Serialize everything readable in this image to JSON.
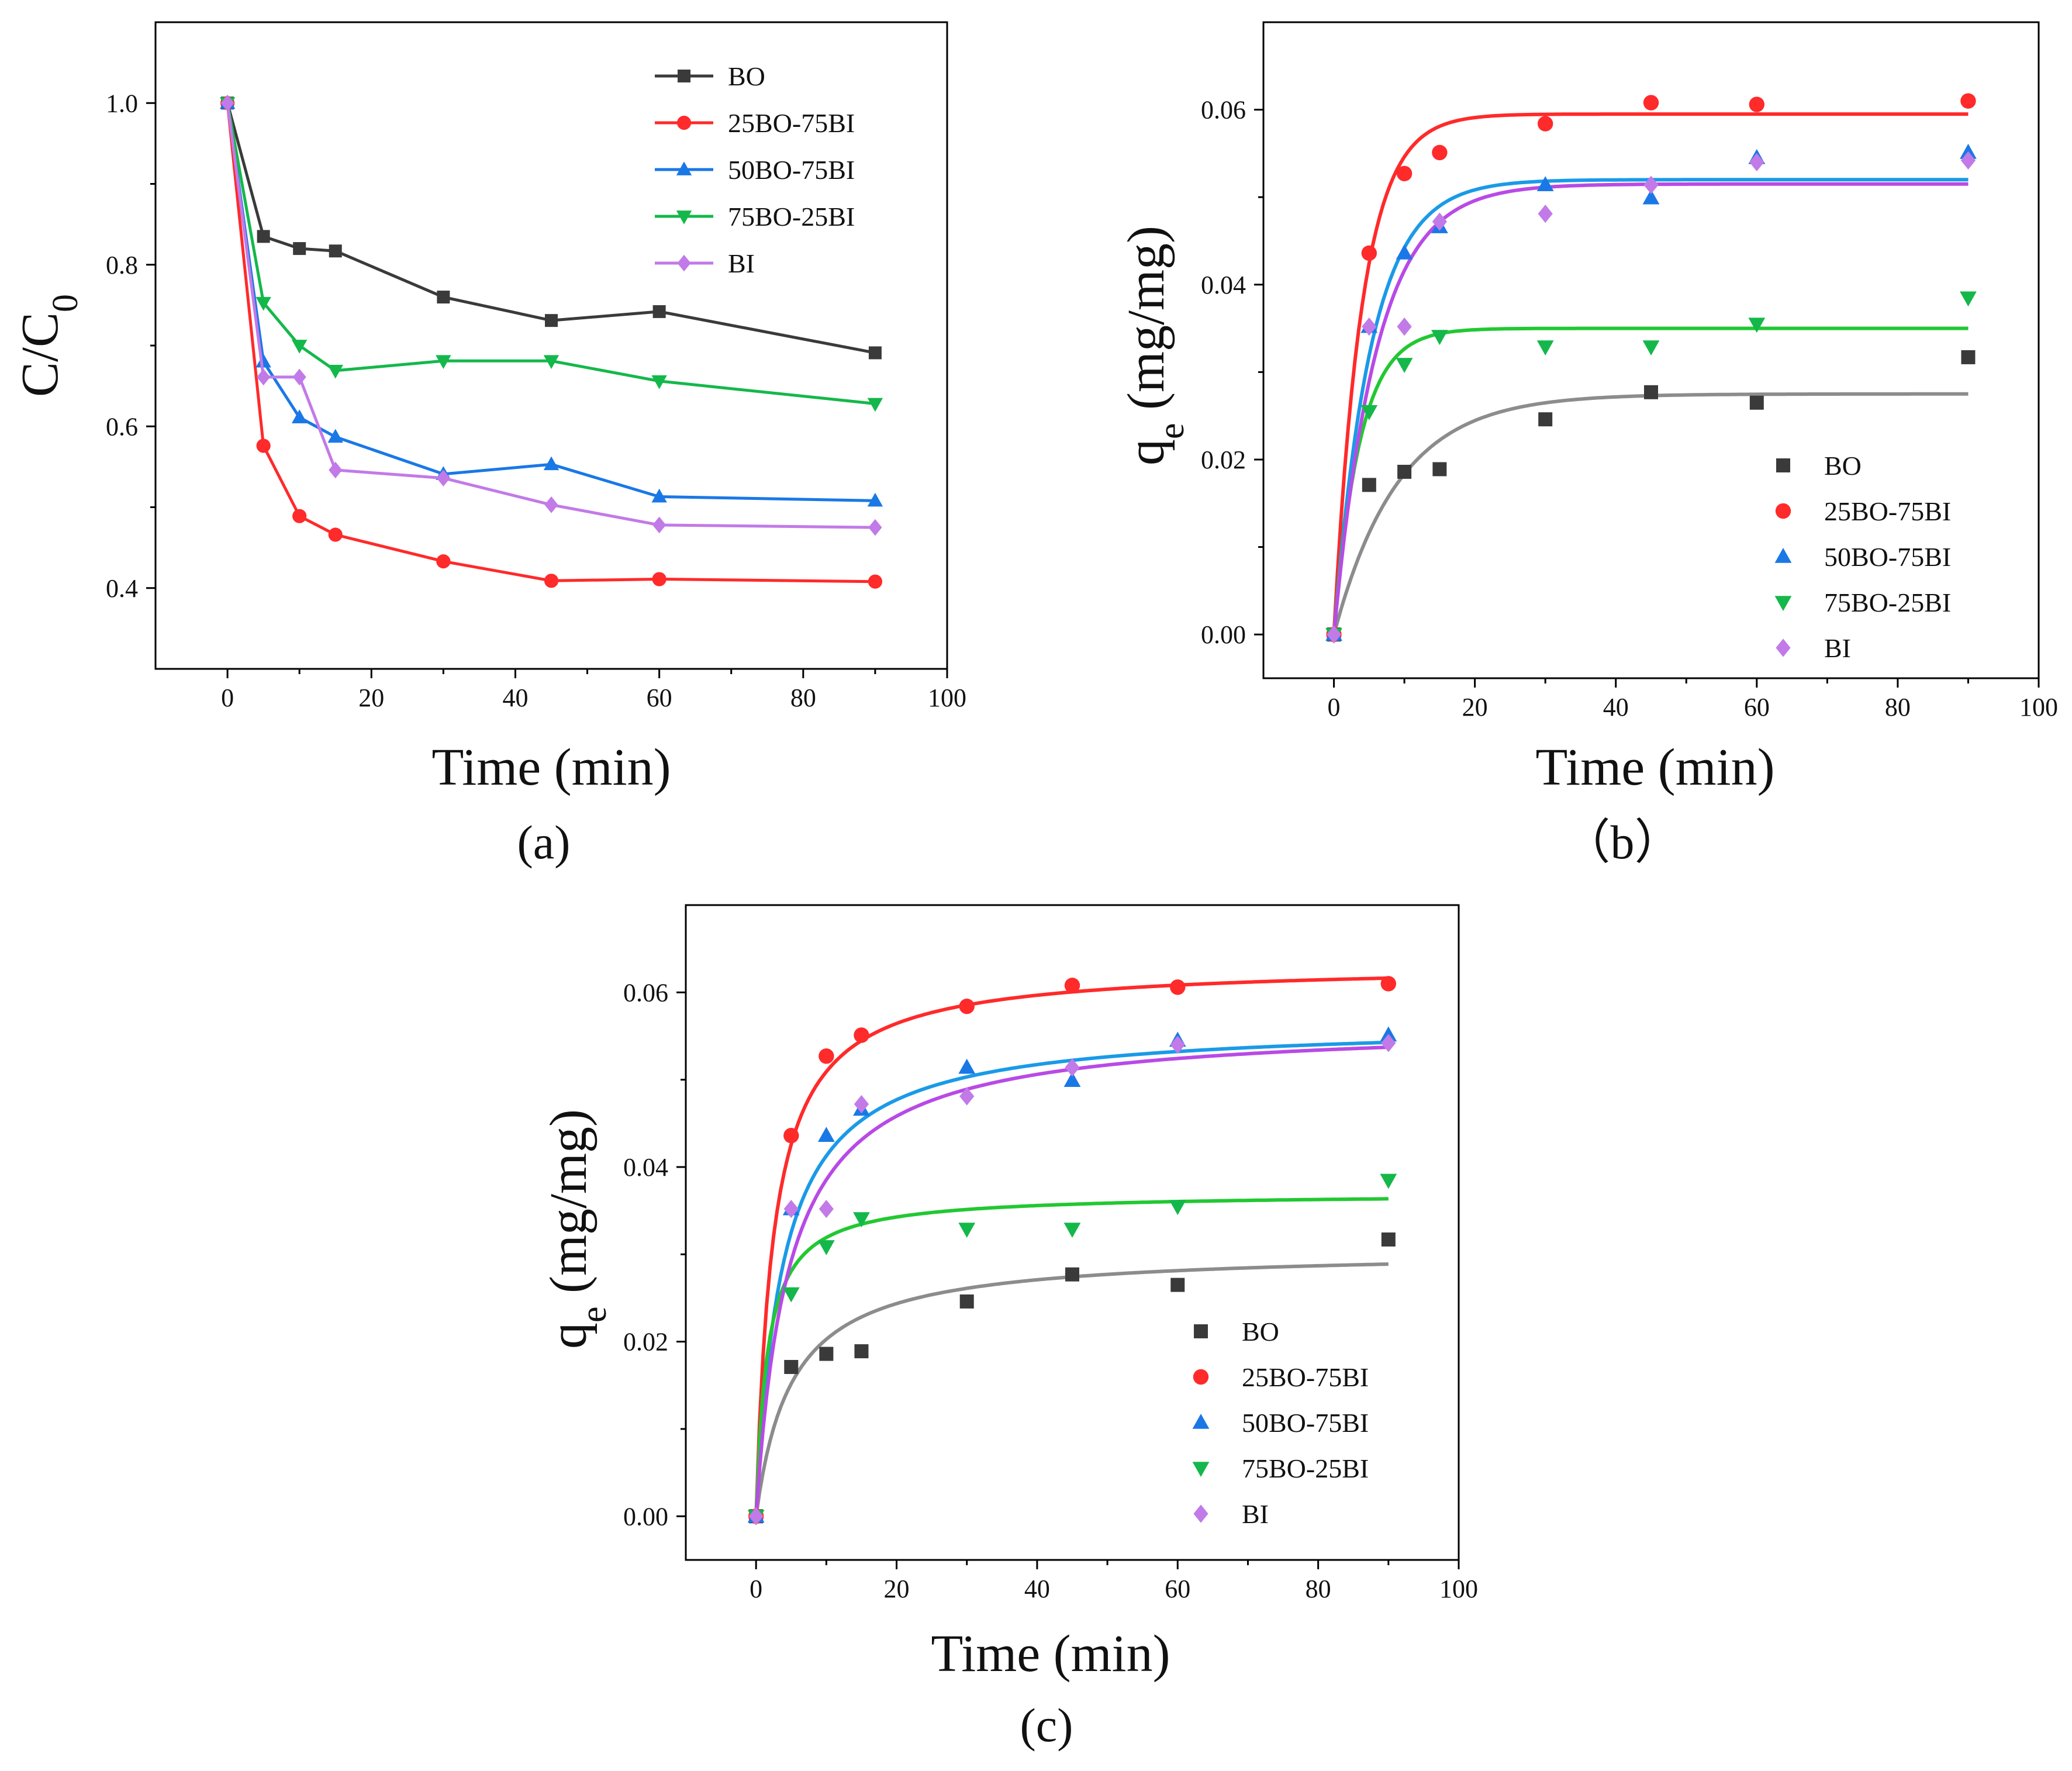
{
  "panel_labels": [
    "(a)",
    "（b）",
    "(c)"
  ],
  "legend_entries": [
    "BO",
    "25BO-75BI",
    "50BO-75BI",
    "75BO-25BI",
    "BI"
  ],
  "series_colors": [
    "#3a3a3a",
    "#ff2a2a",
    "#1a78e6",
    "#14b84a",
    "#c27ae8"
  ],
  "fit_colors": [
    "#8c8c8c",
    "#ff2a2a",
    "#1a9ae8",
    "#22c832",
    "#b84ae6"
  ],
  "markers": [
    "square",
    "circle",
    "triangle-up",
    "triangle-down",
    "diamond"
  ],
  "chart_data": [
    {
      "type": "line",
      "panel": "(a)",
      "xlabel": "Time (min)",
      "ylabel_main": "C/C",
      "ylabel_sub": "0",
      "xlim": [
        -10,
        100
      ],
      "ylim": [
        0.3,
        1.1
      ],
      "xticks": [
        0,
        20,
        40,
        60,
        80,
        100
      ],
      "yticks": [
        0.4,
        0.6,
        0.8,
        1.0
      ],
      "ytick_labels": [
        "0.4",
        "0.6",
        "0.8",
        "1.0"
      ],
      "legend_position": "top-right",
      "x": [
        0,
        5,
        10,
        15,
        30,
        45,
        60,
        90
      ],
      "series": [
        {
          "name": "BO",
          "values": [
            1.0,
            0.835,
            0.82,
            0.817,
            0.76,
            0.731,
            0.742,
            0.691
          ]
        },
        {
          "name": "25BO-75BI",
          "values": [
            1.0,
            0.576,
            0.489,
            0.466,
            0.433,
            0.409,
            0.411,
            0.408
          ]
        },
        {
          "name": "50BO-75BI",
          "values": [
            1.0,
            0.68,
            0.611,
            0.587,
            0.541,
            0.553,
            0.513,
            0.508
          ]
        },
        {
          "name": "75BO-25BI",
          "values": [
            1.0,
            0.753,
            0.7,
            0.669,
            0.681,
            0.681,
            0.656,
            0.628
          ]
        },
        {
          "name": "BI",
          "values": [
            1.0,
            0.661,
            0.661,
            0.546,
            0.536,
            0.503,
            0.478,
            0.475
          ]
        }
      ]
    },
    {
      "type": "scatter",
      "panel": "（b）",
      "xlabel": "Time (min)",
      "ylabel_main": "q",
      "ylabel_sub": "e",
      "ylabel_rest": " (mg/mg)",
      "xlim": [
        -10,
        100
      ],
      "ylim": [
        -0.005,
        0.07
      ],
      "xticks": [
        0,
        20,
        40,
        60,
        80,
        100
      ],
      "yticks": [
        0.0,
        0.02,
        0.04,
        0.06
      ],
      "ytick_labels": [
        "0.00",
        "0.02",
        "0.04",
        "0.06"
      ],
      "legend_position": "bottom-right",
      "x": [
        0,
        5,
        10,
        15,
        30,
        45,
        60,
        90
      ],
      "fit_model": "pseudo-first-order",
      "series": [
        {
          "name": "BO",
          "values": [
            0,
            0.0171,
            0.0186,
            0.0189,
            0.0246,
            0.0277,
            0.0265,
            0.0317
          ],
          "fit_qe": 0.0275,
          "fit_k": 0.11
        },
        {
          "name": "25BO-75BI",
          "values": [
            0,
            0.0436,
            0.0527,
            0.0551,
            0.0584,
            0.0608,
            0.0606,
            0.061
          ],
          "fit_qe": 0.0595,
          "fit_k": 0.25
        },
        {
          "name": "50BO-75BI",
          "values": [
            0,
            0.0352,
            0.0436,
            0.0466,
            0.0514,
            0.0499,
            0.0545,
            0.0551
          ],
          "fit_qe": 0.052,
          "fit_k": 0.19
        },
        {
          "name": "75BO-25BI",
          "values": [
            0,
            0.0255,
            0.0309,
            0.0341,
            0.0329,
            0.0329,
            0.0355,
            0.0385
          ],
          "fit_qe": 0.035,
          "fit_k": 0.27
        },
        {
          "name": "BI",
          "values": [
            0,
            0.0352,
            0.0352,
            0.0472,
            0.0481,
            0.0514,
            0.054,
            0.0542
          ],
          "fit_qe": 0.0515,
          "fit_k": 0.165
        }
      ]
    },
    {
      "type": "scatter",
      "panel": "(c)",
      "xlabel": "Time (min)",
      "ylabel_main": "q",
      "ylabel_sub": "e",
      "ylabel_rest": " (mg/mg)",
      "xlim": [
        -10,
        100
      ],
      "ylim": [
        -0.005,
        0.07
      ],
      "xticks": [
        0,
        20,
        40,
        60,
        80,
        100
      ],
      "yticks": [
        0.0,
        0.02,
        0.04,
        0.06
      ],
      "ytick_labels": [
        "0.00",
        "0.02",
        "0.04",
        "0.06"
      ],
      "legend_position": "bottom-right",
      "x": [
        0,
        5,
        10,
        15,
        30,
        45,
        60,
        90
      ],
      "fit_model": "pseudo-second-order",
      "series": [
        {
          "name": "BO",
          "values": [
            0,
            0.0171,
            0.0186,
            0.0189,
            0.0246,
            0.0277,
            0.0265,
            0.0317
          ],
          "fit_qe": 0.0305,
          "fit_k": 6.5
        },
        {
          "name": "25BO-75BI",
          "values": [
            0,
            0.0436,
            0.0527,
            0.0551,
            0.0584,
            0.0608,
            0.0606,
            0.061
          ],
          "fit_qe": 0.0633,
          "fit_k": 6.5
        },
        {
          "name": "50BO-75BI",
          "values": [
            0,
            0.0352,
            0.0436,
            0.0466,
            0.0514,
            0.0499,
            0.0545,
            0.0551
          ],
          "fit_qe": 0.0565,
          "fit_k": 4.8
        },
        {
          "name": "75BO-25BI",
          "values": [
            0,
            0.0255,
            0.0309,
            0.0341,
            0.0329,
            0.0329,
            0.0355,
            0.0385
          ],
          "fit_qe": 0.037,
          "fit_k": 17.0
        },
        {
          "name": "BI",
          "values": [
            0,
            0.0352,
            0.0352,
            0.0472,
            0.0481,
            0.0514,
            0.054,
            0.0542
          ],
          "fit_qe": 0.0565,
          "fit_k": 3.8
        }
      ]
    }
  ]
}
